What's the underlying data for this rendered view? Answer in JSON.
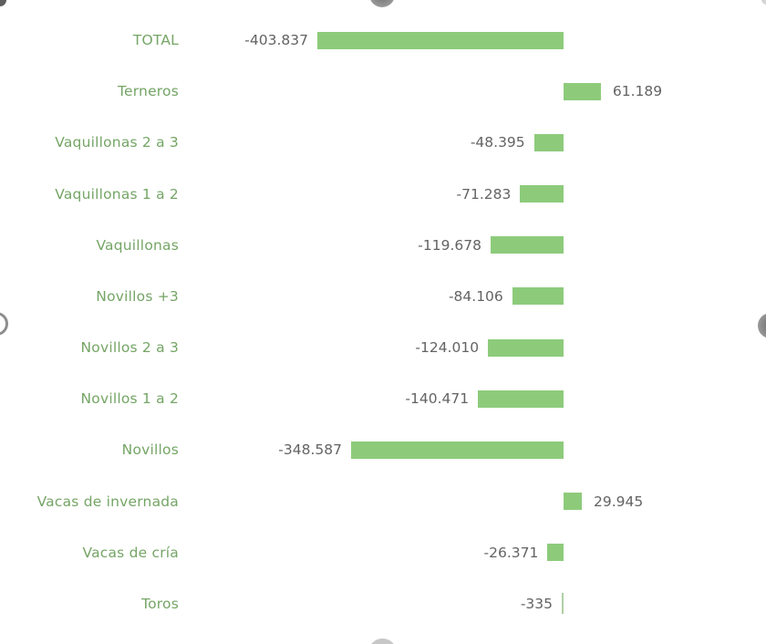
{
  "chart_data": {
    "type": "bar",
    "orientation": "horizontal",
    "title": "",
    "xlabel": "",
    "ylabel": "",
    "grid": false,
    "legend": false,
    "categories": [
      "TOTAL",
      "Terneros",
      "Vaquillonas 2 a 3",
      "Vaquillonas 1 a 2",
      "Vaquillonas",
      "Novillos +3",
      "Novillos 2 a 3",
      "Novillos 1 a 2",
      "Novillos",
      "Vacas de invernada",
      "Vacas de cría",
      "Toros"
    ],
    "values": [
      -403837,
      61189,
      -48395,
      -71283,
      -119678,
      -84106,
      -124010,
      -140471,
      -348587,
      29945,
      -26371,
      -335
    ],
    "value_labels": [
      "-403.837",
      "61.189",
      "-48.395",
      "-71.283",
      "-119.678",
      "-84.106",
      "-124.010",
      "-140.471",
      "-348.587",
      "29.945",
      "-26.371",
      "-335"
    ],
    "xlim": [
      -620000,
      330000
    ],
    "colors": {
      "bar": "#8DCB7B",
      "tiny_bar": "#AECFA4",
      "category_label": "#75A566",
      "value_label": "#636363",
      "background": "#FFFFFF"
    }
  }
}
